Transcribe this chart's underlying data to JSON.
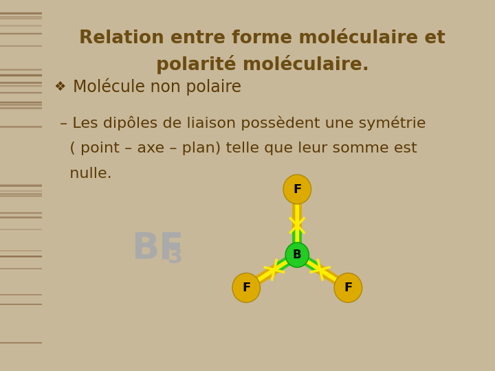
{
  "title_line1": "Relation entre forme moléculaire et",
  "title_line2": "polarité moléculaire.",
  "title_color": "#6b4c11",
  "title_fontsize": 19,
  "bullet_text": "Molécule non polaire",
  "bullet_fontsize": 17,
  "body_lines": [
    "– Les dipôles de liaison possèdent une symétrie",
    "  ( point – axe – plan) telle que leur somme est",
    "  nulle."
  ],
  "body_fontsize": 16,
  "bf3_fontsize": 38,
  "bf3_color": "#aaaaaa",
  "bg_color": "#ffffff",
  "content_bg": "#fafaf5",
  "border_color": "#c8c8c8",
  "left_strip_color": "#7a4010",
  "atom_B_color": "#22cc22",
  "atom_F_color": "#ddaa00",
  "bond_gold": "#ddaa00",
  "bond_green": "#22cc22",
  "arrow_color": "#ffee00",
  "text_color": "#5a3a05",
  "bullet_color": "#5a3a05"
}
